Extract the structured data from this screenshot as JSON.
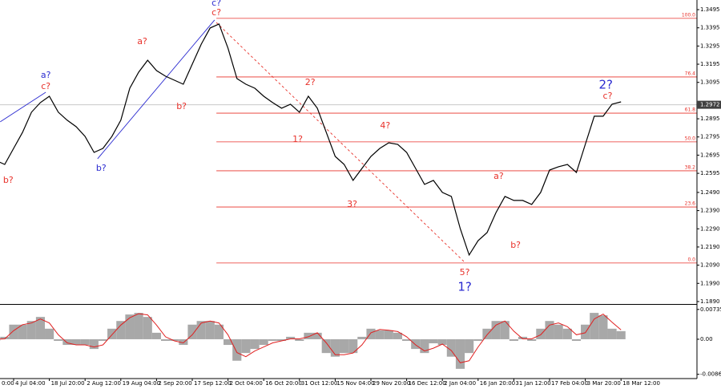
{
  "chart_data": [
    {
      "type": "line",
      "color": "#000000",
      "categories": [
        "0:00",
        null,
        null,
        null,
        "4 Jul 04:00",
        null,
        null,
        null,
        "18 Jul 20:00",
        null,
        null,
        null,
        "2 Aug 12:00",
        null,
        null,
        null,
        "19 Aug 04:00",
        null,
        null,
        null,
        "2 Sep 20:00",
        null,
        null,
        null,
        "17 Sep 12:00",
        null,
        null,
        null,
        "2 Oct 04:00",
        null,
        null,
        null,
        "16 Oct 20:00",
        null,
        null,
        null,
        "31 Oct 12:00",
        null,
        null,
        null,
        "15 Nov 04:00",
        null,
        null,
        null,
        "29 Nov 20:00",
        null,
        null,
        null,
        "16 Dec 12:00",
        null,
        null,
        null,
        "2 Jan 04:00",
        null,
        null,
        null,
        "16 Jan 20:00",
        null,
        null,
        null,
        "31 Jan 12:00",
        null,
        null,
        null,
        "17 Feb 04:00",
        null,
        null,
        null,
        "3 Mar 20:00",
        null,
        null,
        null,
        "18 Mar 12:00"
      ],
      "values": [
        null,
        null,
        1.2666,
        1.2644,
        1.2732,
        1.282,
        1.2931,
        1.2984,
        1.3019,
        1.2931,
        1.2887,
        1.2851,
        1.2798,
        1.271,
        1.2732,
        1.2798,
        1.2887,
        1.3063,
        1.3151,
        1.3217,
        1.316,
        1.3129,
        1.3107,
        1.3085,
        1.3195,
        1.3305,
        1.3394,
        1.3416,
        1.3283,
        1.3116,
        1.3085,
        1.3063,
        1.3019,
        1.2984,
        1.2953,
        1.2975,
        1.2931,
        1.3019,
        1.2953,
        1.282,
        1.2688,
        1.2644,
        1.2556,
        1.2622,
        1.2688,
        1.2732,
        1.2763,
        1.2754,
        1.271,
        1.2622,
        1.2534,
        1.2556,
        1.249,
        1.2468,
        1.2291,
        1.2146,
        1.2225,
        1.2269,
        1.2379,
        1.2468,
        1.2446,
        1.2446,
        1.2424,
        1.249,
        1.2613,
        1.2631,
        1.2644,
        1.26,
        1.2754,
        1.2909,
        1.2909,
        1.2975,
        1.2988
      ],
      "ylim": [
        1.1881,
        1.3548
      ],
      "yticks": [
        1.3495,
        1.3395,
        1.3295,
        1.3195,
        1.3095,
        1.2895,
        1.2795,
        1.2695,
        1.2595,
        {
          "value": 1.249,
          "label": "1.2490"
        },
        {
          "value": 1.239,
          "label": "1.2390"
        },
        {
          "value": 1.229,
          "label": "1.2290"
        },
        {
          "value": 1.219,
          "label": "1.2190"
        },
        {
          "value": 1.209,
          "label": "1.2090"
        },
        {
          "value": 1.199,
          "label": "1.1990"
        },
        {
          "value": 1.189,
          "label": "1.1890"
        }
      ],
      "current_price": 1.2972,
      "fibonacci": {
        "color": "#e8312a",
        "start": 26.7,
        "levels": [
          {
            "ratio": "100.0",
            "price": 1.3447
          },
          {
            "ratio": "76.4",
            "price": 1.3125
          },
          {
            "ratio": "61.8",
            "price": 1.2926
          },
          {
            "ratio": "50.0",
            "price": 1.2768
          },
          {
            "ratio": "38.2",
            "price": 1.2609
          },
          {
            "ratio": "23.6",
            "price": 1.241
          },
          {
            "ratio": "0.0",
            "price": 1.2102
          }
        ]
      },
      "trend_lines": [
        {
          "color": "#2a2ad0",
          "style": "solid",
          "from": [
            2.5,
            1.2878
          ],
          "to": [
            7.6,
            1.3041
          ]
        },
        {
          "color": "#2a2ad0",
          "style": "solid",
          "from": [
            13.4,
            1.2675
          ],
          "to": [
            26.5,
            1.3438
          ]
        },
        {
          "color": "#e8312a",
          "style": "dashed",
          "from": [
            26.7,
            1.3424
          ],
          "to": [
            54.5,
            1.2106
          ]
        }
      ],
      "annotations": [
        {
          "text": "b?",
          "color": "#e8312a",
          "x": 3.4,
          "y": 1.2556
        },
        {
          "text": "a?",
          "color": "#2a2ad0",
          "x": 7.6,
          "y": 1.3133
        },
        {
          "text": "c?",
          "color": "#e8312a",
          "x": 7.6,
          "y": 1.3072
        },
        {
          "text": "b?",
          "color": "#2a2ad0",
          "x": 13.8,
          "y": 1.2622
        },
        {
          "text": "a?",
          "color": "#e8312a",
          "x": 18.4,
          "y": 1.3319
        },
        {
          "text": "b?",
          "color": "#e8312a",
          "x": 22.8,
          "y": 1.2961
        },
        {
          "text": "c?",
          "color": "#2a2ad0",
          "x": 26.7,
          "y": 1.353
        },
        {
          "text": "c?",
          "color": "#e8312a",
          "x": 26.7,
          "y": 1.3477
        },
        {
          "text": "2?",
          "color": "#e8312a",
          "x": 37.2,
          "y": 1.3094
        },
        {
          "text": "1?",
          "color": "#e8312a",
          "x": 35.8,
          "y": 1.2781
        },
        {
          "text": "3?",
          "color": "#e8312a",
          "x": 41.9,
          "y": 1.2423
        },
        {
          "text": "4?",
          "color": "#e8312a",
          "x": 45.6,
          "y": 1.2856
        },
        {
          "text": "5?",
          "color": "#e8312a",
          "x": 54.5,
          "y": 1.2049
        },
        {
          "text": "1?",
          "color": "#2a2ad0",
          "x": 54.5,
          "y": 1.1969
        },
        {
          "text": "a?",
          "color": "#e8312a",
          "x": 58.3,
          "y": 1.2578
        },
        {
          "text": "b?",
          "color": "#e8312a",
          "x": 60.2,
          "y": 1.2198
        },
        {
          "text": "2?",
          "color": "#2a2ad0",
          "x": 70.3,
          "y": 1.308
        },
        {
          "text": "c?",
          "color": "#e8312a",
          "x": 70.5,
          "y": 1.3019
        }
      ]
    },
    {
      "type": "macd",
      "color": "#a8a8a8",
      "signal_color": "#e02020",
      "values": [
        null,
        null,
        -0.0004,
        0.0006,
        0.0036,
        0.0036,
        0.0045,
        0.0055,
        0.0026,
        -0.0004,
        -0.0014,
        -0.0014,
        -0.0014,
        -0.0024,
        -0.0004,
        0.0026,
        0.0045,
        0.0061,
        0.0065,
        0.0055,
        0.0016,
        -0.0004,
        -0.0004,
        -0.0014,
        0.0036,
        0.0045,
        0.0045,
        0.0036,
        -0.0014,
        -0.0053,
        -0.0034,
        -0.0024,
        -0.0014,
        -0.0004,
        -0.0004,
        0.0006,
        -0.0004,
        0.0016,
        0.0016,
        -0.0034,
        -0.0043,
        -0.0034,
        -0.0034,
        0.0006,
        0.0026,
        0.0022,
        0.0022,
        0.0016,
        -0.0004,
        -0.0024,
        -0.0034,
        -0.001,
        -0.0014,
        -0.0043,
        -0.0073,
        -0.0034,
        -0.0004,
        0.0026,
        0.0045,
        0.0045,
        -0.0004,
        0.0006,
        -0.0004,
        0.0026,
        0.0045,
        0.0036,
        0.0026,
        -0.0004,
        0.0036,
        0.0065,
        0.0059,
        0.0026,
        0.002
      ],
      "signal": [
        null,
        null,
        0.0,
        0.0001,
        0.0021,
        0.0036,
        0.004,
        0.005,
        0.004,
        0.0011,
        -0.0009,
        -0.0014,
        -0.0014,
        -0.0019,
        -0.0014,
        0.0011,
        0.0035,
        0.0053,
        0.0063,
        0.006,
        0.0035,
        0.0006,
        -0.0004,
        -0.0009,
        0.0011,
        0.004,
        0.0045,
        0.004,
        0.0011,
        -0.0033,
        -0.0043,
        -0.0029,
        -0.0019,
        -0.0009,
        -0.0004,
        0.0001,
        0.0001,
        0.0006,
        0.0016,
        -0.0009,
        -0.0038,
        -0.0038,
        -0.0034,
        -0.0014,
        0.0016,
        0.0024,
        0.0022,
        0.0019,
        0.0006,
        -0.0014,
        -0.0029,
        -0.0022,
        -0.0012,
        -0.0028,
        -0.0058,
        -0.0053,
        -0.0019,
        0.0011,
        0.0035,
        0.0045,
        0.002,
        0.0001,
        0.0001,
        0.0011,
        0.0035,
        0.004,
        0.0031,
        0.0011,
        0.0016,
        0.005,
        0.0062,
        0.0042,
        0.0023
      ],
      "ylim": [
        -0.0097,
        0.0083
      ],
      "yticks": [
        0.00735,
        {
          "value": 0,
          "label": "0.00"
        },
        -0.00865
      ]
    }
  ]
}
